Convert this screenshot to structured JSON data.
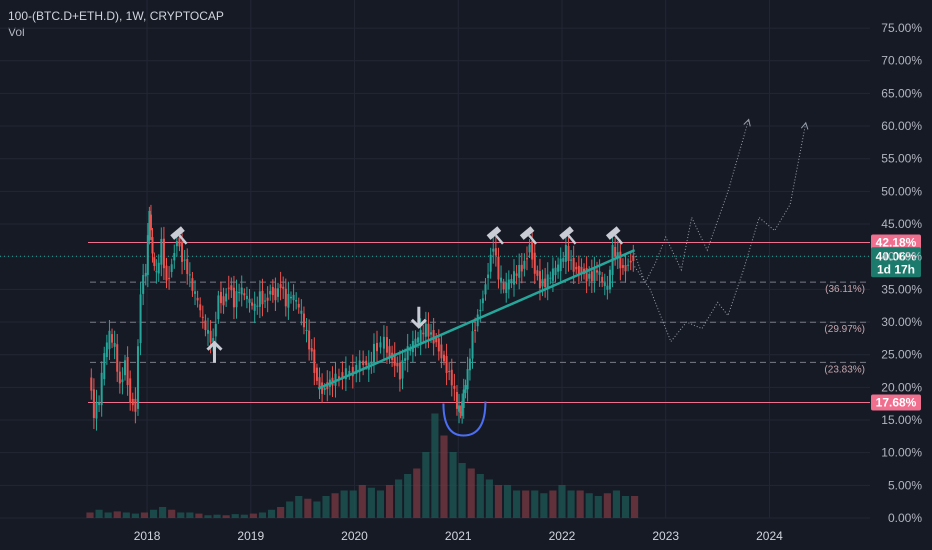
{
  "header": {
    "symbol_line": "100-(BTC.D+ETH.D), 1W, CRYPTOCAP",
    "volume_label": "Vol"
  },
  "chart_data": {
    "type": "candlestick",
    "title": "100-(BTC.D+ETH.D), 1W, CRYPTOCAP",
    "timeframe": "1W",
    "yaxis": {
      "range": [
        0,
        77
      ],
      "ticks": [
        "0.00%",
        "5.00%",
        "10.00%",
        "15.00%",
        "20.00%",
        "25.00%",
        "30.00%",
        "35.00%",
        "40.00%",
        "45.00%",
        "50.00%",
        "55.00%",
        "60.00%",
        "65.00%",
        "70.00%",
        "75.00%"
      ],
      "tick_values": [
        0,
        5,
        10,
        15,
        20,
        25,
        30,
        35,
        40,
        45,
        50,
        55,
        60,
        65,
        70,
        75
      ]
    },
    "xaxis": {
      "ticks": [
        "2018",
        "2019",
        "2020",
        "2021",
        "2022",
        "2023",
        "2024"
      ],
      "tick_years": [
        2018,
        2019,
        2020,
        2021,
        2022,
        2023,
        2024
      ],
      "range": [
        2017.45,
        2024.95
      ]
    },
    "price_path": [
      [
        2017.45,
        22
      ],
      [
        2017.5,
        16
      ],
      [
        2017.55,
        18
      ],
      [
        2017.6,
        25
      ],
      [
        2017.65,
        28
      ],
      [
        2017.7,
        26
      ],
      [
        2017.75,
        20
      ],
      [
        2017.8,
        24
      ],
      [
        2017.85,
        18
      ],
      [
        2017.9,
        17
      ],
      [
        2017.95,
        35
      ],
      [
        2018.0,
        38
      ],
      [
        2018.03,
        47
      ],
      [
        2018.06,
        40
      ],
      [
        2018.1,
        37
      ],
      [
        2018.15,
        42
      ],
      [
        2018.2,
        36
      ],
      [
        2018.25,
        39
      ],
      [
        2018.3,
        43
      ],
      [
        2018.35,
        40
      ],
      [
        2018.4,
        38
      ],
      [
        2018.45,
        35
      ],
      [
        2018.5,
        33
      ],
      [
        2018.55,
        30
      ],
      [
        2018.6,
        28
      ],
      [
        2018.65,
        27
      ],
      [
        2018.7,
        34
      ],
      [
        2018.75,
        33
      ],
      [
        2018.8,
        36
      ],
      [
        2018.85,
        33
      ],
      [
        2018.9,
        35
      ],
      [
        2018.95,
        34
      ],
      [
        2019.0,
        33
      ],
      [
        2019.05,
        32
      ],
      [
        2019.1,
        34
      ],
      [
        2019.15,
        33
      ],
      [
        2019.2,
        35
      ],
      [
        2019.25,
        34
      ],
      [
        2019.3,
        36
      ],
      [
        2019.35,
        33
      ],
      [
        2019.4,
        34
      ],
      [
        2019.45,
        33
      ],
      [
        2019.5,
        31
      ],
      [
        2019.55,
        28
      ],
      [
        2019.6,
        25
      ],
      [
        2019.65,
        21
      ],
      [
        2019.7,
        19.5
      ],
      [
        2019.75,
        20.5
      ],
      [
        2019.8,
        21
      ],
      [
        2019.9,
        22
      ],
      [
        2020.0,
        22.5
      ],
      [
        2020.1,
        24
      ],
      [
        2020.15,
        23
      ],
      [
        2020.2,
        26
      ],
      [
        2020.3,
        27
      ],
      [
        2020.35,
        25
      ],
      [
        2020.4,
        24
      ],
      [
        2020.45,
        22
      ],
      [
        2020.5,
        25
      ],
      [
        2020.55,
        26
      ],
      [
        2020.6,
        27
      ],
      [
        2020.65,
        28
      ],
      [
        2020.7,
        29
      ],
      [
        2020.75,
        28
      ],
      [
        2020.8,
        27
      ],
      [
        2020.85,
        25
      ],
      [
        2020.9,
        23
      ],
      [
        2020.95,
        21
      ],
      [
        2021.0,
        17
      ],
      [
        2021.03,
        16
      ],
      [
        2021.06,
        19
      ],
      [
        2021.1,
        22
      ],
      [
        2021.15,
        28
      ],
      [
        2021.2,
        31
      ],
      [
        2021.25,
        34
      ],
      [
        2021.3,
        38
      ],
      [
        2021.35,
        42
      ],
      [
        2021.4,
        37
      ],
      [
        2021.45,
        35
      ],
      [
        2021.5,
        36
      ],
      [
        2021.55,
        37
      ],
      [
        2021.6,
        38
      ],
      [
        2021.65,
        39
      ],
      [
        2021.7,
        42
      ],
      [
        2021.75,
        38
      ],
      [
        2021.8,
        36
      ],
      [
        2021.85,
        36
      ],
      [
        2021.9,
        37
      ],
      [
        2021.95,
        38
      ],
      [
        2022.0,
        39
      ],
      [
        2022.05,
        41
      ],
      [
        2022.1,
        39
      ],
      [
        2022.15,
        38
      ],
      [
        2022.2,
        38
      ],
      [
        2022.25,
        37
      ],
      [
        2022.3,
        37
      ],
      [
        2022.35,
        38
      ],
      [
        2022.4,
        36
      ],
      [
        2022.45,
        35
      ],
      [
        2022.5,
        41
      ],
      [
        2022.55,
        40
      ],
      [
        2022.6,
        38
      ],
      [
        2022.65,
        39
      ],
      [
        2022.7,
        40
      ]
    ],
    "horizontal_levels": [
      {
        "value": 42.18,
        "label": "42.18%",
        "style": "solid",
        "color": "#f06e8e"
      },
      {
        "value": 17.68,
        "label": "17.68%",
        "style": "solid",
        "color": "#f06e8e"
      },
      {
        "value": 36.11,
        "label": "(36.11%)",
        "style": "dashed"
      },
      {
        "value": 29.97,
        "label": "(29.97%)",
        "style": "dashed"
      },
      {
        "value": 23.83,
        "label": "(23.83%)",
        "style": "dashed"
      }
    ],
    "current_price": {
      "value": 40.06,
      "label": "40.06%",
      "countdown": "1d 17h"
    },
    "trendline": {
      "from": [
        2019.65,
        19.8
      ],
      "to": [
        2022.7,
        41.0
      ],
      "color": "#26a69a"
    },
    "projection_paths": [
      [
        [
          2022.7,
          40.5
        ],
        [
          2022.8,
          36
        ],
        [
          2022.9,
          39
        ],
        [
          2023.0,
          43
        ],
        [
          2023.15,
          38
        ],
        [
          2023.25,
          46
        ],
        [
          2023.4,
          41
        ],
        [
          2023.6,
          50
        ],
        [
          2023.8,
          61
        ]
      ],
      [
        [
          2022.7,
          38.5
        ],
        [
          2022.85,
          35
        ],
        [
          2022.95,
          31
        ],
        [
          2023.05,
          27
        ],
        [
          2023.2,
          30
        ],
        [
          2023.35,
          29
        ],
        [
          2023.5,
          33
        ],
        [
          2023.6,
          31
        ],
        [
          2023.75,
          38
        ],
        [
          2023.9,
          46
        ],
        [
          2024.05,
          44
        ],
        [
          2024.2,
          48
        ],
        [
          2024.35,
          60.5
        ]
      ]
    ],
    "volume": {
      "values": [
        1,
        1.5,
        1,
        1.2,
        1,
        0.8,
        1,
        1.5,
        2,
        1.5,
        1,
        1,
        0.8,
        0.5,
        0.6,
        0.5,
        0.7,
        0.6,
        0.8,
        1,
        1.5,
        2,
        3,
        4,
        3.5,
        3,
        4,
        4.5,
        5,
        5,
        6,
        5.5,
        5,
        6,
        7,
        8,
        9,
        12,
        19,
        15,
        12,
        10,
        9,
        8,
        7,
        6,
        6,
        5,
        5,
        5,
        4.5,
        5,
        6,
        5,
        5,
        4.5,
        4,
        4.5,
        5,
        4,
        4
      ],
      "x_start": 2017.45,
      "x_end": 2022.7
    },
    "annotations": [
      {
        "type": "hammer",
        "x": 2018.3,
        "y": 43.5
      },
      {
        "type": "hammer",
        "x": 2021.35,
        "y": 43.5
      },
      {
        "type": "hammer",
        "x": 2021.67,
        "y": 43.5
      },
      {
        "type": "hammer",
        "x": 2022.05,
        "y": 43.5
      },
      {
        "type": "hammer",
        "x": 2022.5,
        "y": 43.5
      },
      {
        "type": "arrow-up",
        "x": 2018.65,
        "y": 25
      },
      {
        "type": "arrow-down",
        "x": 2020.62,
        "y": 30.5
      },
      {
        "type": "cup",
        "x": 2021.05,
        "y": 16
      }
    ],
    "grid": true,
    "colors": {
      "up": "#26a69a",
      "down": "#ef5350",
      "background": "#161a25",
      "grid": "#232734",
      "level": "#f06e8e"
    }
  }
}
